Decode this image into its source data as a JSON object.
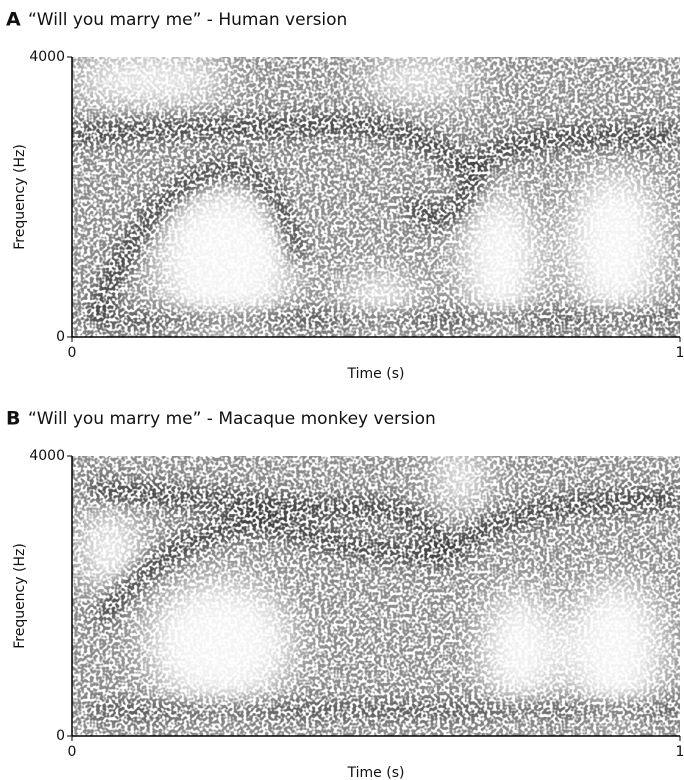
{
  "chart_data": [
    {
      "type": "spectrogram",
      "panel": "A",
      "title": "“Will you marry me” - Human version",
      "xlabel": "Time (s)",
      "ylabel": "Frequency (Hz)",
      "xlim": [
        0,
        1
      ],
      "ylim": [
        0,
        4000
      ],
      "xticks": [
        0,
        1
      ],
      "yticks": [
        0,
        4000
      ]
    },
    {
      "type": "spectrogram",
      "panel": "B",
      "title": "“Will you marry me” - Macaque monkey version",
      "xlabel": "Time (s)",
      "ylabel": "Frequency (Hz)",
      "xlim": [
        0,
        1
      ],
      "ylim": [
        0,
        4000
      ],
      "xticks": [
        0,
        1
      ],
      "yticks": [
        0,
        4000
      ]
    }
  ]
}
